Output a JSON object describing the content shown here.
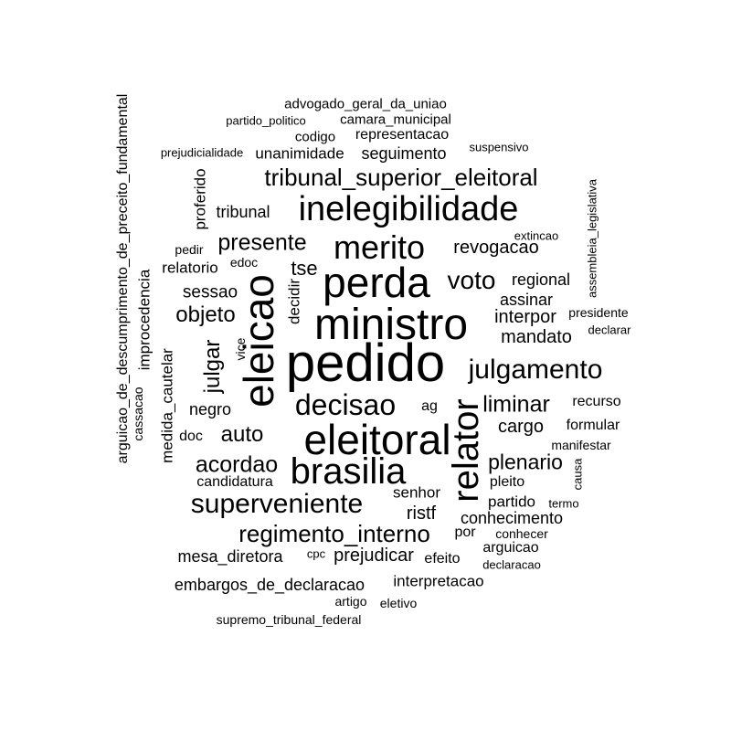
{
  "words": [
    {
      "text": "pedido",
      "rotated": false
    },
    {
      "text": "ministro",
      "rotated": false
    },
    {
      "text": "eleitoral",
      "rotated": false
    },
    {
      "text": "perda",
      "rotated": false
    },
    {
      "text": "eleicao",
      "rotated": true
    },
    {
      "text": "brasilia",
      "rotated": false
    },
    {
      "text": "relator",
      "rotated": true
    },
    {
      "text": "inelegibilidade",
      "rotated": false
    },
    {
      "text": "merito",
      "rotated": false
    },
    {
      "text": "decisao",
      "rotated": false
    },
    {
      "text": "superveniente",
      "rotated": false
    },
    {
      "text": "julgamento",
      "rotated": false
    },
    {
      "text": "tribunal_superior_eleitoral",
      "rotated": false
    },
    {
      "text": "regimento_interno",
      "rotated": false
    },
    {
      "text": "voto",
      "rotated": false
    },
    {
      "text": "presente",
      "rotated": false
    },
    {
      "text": "acordao",
      "rotated": false
    },
    {
      "text": "liminar",
      "rotated": false
    },
    {
      "text": "plenario",
      "rotated": false
    },
    {
      "text": "objeto",
      "rotated": false
    },
    {
      "text": "auto",
      "rotated": false
    },
    {
      "text": "julgar",
      "rotated": true
    },
    {
      "text": "revogacao",
      "rotated": false
    },
    {
      "text": "interpor",
      "rotated": false
    },
    {
      "text": "mandato",
      "rotated": false
    },
    {
      "text": "cargo",
      "rotated": false
    },
    {
      "text": "ristf",
      "rotated": false
    },
    {
      "text": "tse",
      "rotated": false
    },
    {
      "text": "conhecimento",
      "rotated": false
    },
    {
      "text": "mesa_diretora",
      "rotated": false
    },
    {
      "text": "prejudicar",
      "rotated": false
    },
    {
      "text": "embargos_de_declaracao",
      "rotated": false
    },
    {
      "text": "sessao",
      "rotated": false
    },
    {
      "text": "assinar",
      "rotated": false
    },
    {
      "text": "regional",
      "rotated": false
    },
    {
      "text": "seguimento",
      "rotated": false
    },
    {
      "text": "unanimidade",
      "rotated": false
    },
    {
      "text": "tribunal",
      "rotated": false
    },
    {
      "text": "negro",
      "rotated": false
    },
    {
      "text": "partido",
      "rotated": false
    },
    {
      "text": "senhor",
      "rotated": false
    },
    {
      "text": "interpretacao",
      "rotated": false
    },
    {
      "text": "relatorio",
      "rotated": false
    },
    {
      "text": "candidatura",
      "rotated": false
    },
    {
      "text": "representacao",
      "rotated": false
    },
    {
      "text": "pleito",
      "rotated": false
    },
    {
      "text": "medida_cautelar",
      "rotated": true
    },
    {
      "text": "proferido",
      "rotated": true
    },
    {
      "text": "improcedencia",
      "rotated": true
    },
    {
      "text": "decidir",
      "rotated": true
    },
    {
      "text": "recurso",
      "rotated": false
    },
    {
      "text": "formular",
      "rotated": false
    },
    {
      "text": "arguicao",
      "rotated": false
    },
    {
      "text": "efeito",
      "rotated": false
    },
    {
      "text": "doc",
      "rotated": false
    },
    {
      "text": "ag",
      "rotated": false
    },
    {
      "text": "por",
      "rotated": false
    },
    {
      "text": "arguicao_de_descumprimento_de_preceito_fundamental",
      "rotated": true
    },
    {
      "text": "advogado_geral_da_uniao",
      "rotated": false
    },
    {
      "text": "camara_municipal",
      "rotated": false
    },
    {
      "text": "codigo",
      "rotated": false
    },
    {
      "text": "presidente",
      "rotated": false
    },
    {
      "text": "manifestar",
      "rotated": false
    },
    {
      "text": "conhecer",
      "rotated": false
    },
    {
      "text": "supremo_tribunal_federal",
      "rotated": false
    },
    {
      "text": "pedir",
      "rotated": false
    },
    {
      "text": "edoc",
      "rotated": false
    },
    {
      "text": "artigo",
      "rotated": false
    },
    {
      "text": "eletivo",
      "rotated": false
    },
    {
      "text": "termo",
      "rotated": false
    },
    {
      "text": "declaracao",
      "rotated": false
    },
    {
      "text": "partido_politico",
      "rotated": false
    },
    {
      "text": "suspensivo",
      "rotated": false
    },
    {
      "text": "extincao",
      "rotated": false
    },
    {
      "text": "declarar",
      "rotated": false
    },
    {
      "text": "prejudicialidade",
      "rotated": false
    },
    {
      "text": "cpc",
      "rotated": false
    },
    {
      "text": "vice",
      "rotated": true
    },
    {
      "text": "cassacao",
      "rotated": true
    },
    {
      "text": "causa",
      "rotated": true
    },
    {
      "text": "assembleia_legislativa",
      "rotated": true
    }
  ]
}
